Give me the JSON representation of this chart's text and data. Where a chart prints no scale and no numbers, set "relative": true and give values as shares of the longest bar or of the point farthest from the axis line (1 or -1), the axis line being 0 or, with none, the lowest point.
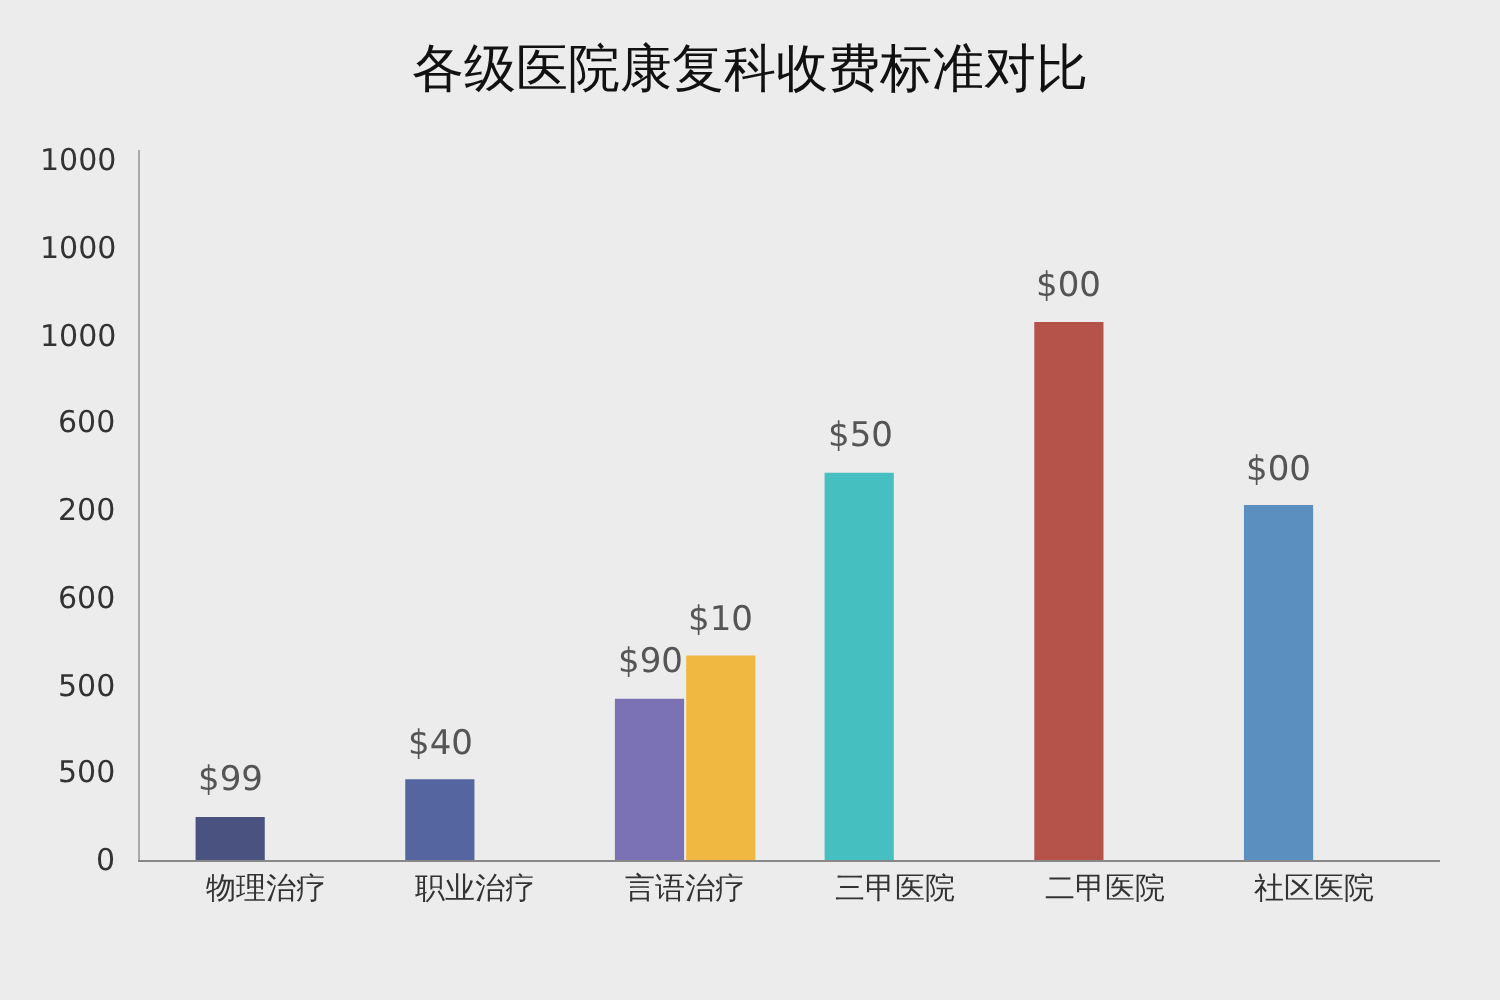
{
  "chart_data": {
    "type": "bar",
    "title": "各级医院康复科收费标准对比",
    "relative": true,
    "categories": [
      "物理治疗",
      "职业治疗",
      "言语治疗",
      "三甲医院",
      "二甲医院",
      "社区医院"
    ],
    "series": [
      {
        "colors": [
          "#4a5280",
          "#5565a0",
          "#7b72b5",
          "#45bfc0",
          "#b5524a",
          "#5b8fbf"
        ],
        "values": [
          0.08,
          0.15,
          0.3,
          0.72,
          1,
          0.66
        ]
      },
      {
        "color": "#f0b840",
        "values": [
          null,
          null,
          0.38,
          null,
          null,
          null
        ]
      }
    ],
    "annotations": [
      "0",
      "500",
      "500",
      "600",
      "200",
      "600",
      "1000",
      "1000",
      "1000",
      {
        "text": "$99",
        "x": "物理治疗",
        "y": 0.08
      },
      {
        "text": "$40",
        "x": "职业治疗",
        "y": 0.15
      },
      {
        "text": "$90",
        "x": "言语治疗",
        "y": 0.3
      },
      {
        "text": "$10",
        "x": "言语治疗",
        "y": 0.38
      },
      {
        "text": "$50",
        "x": "三甲医院",
        "y": 0.72
      },
      {
        "text": "$00",
        "x": "二甲医院",
        "y": 1
      },
      {
        "text": "$00",
        "x": "社区医院",
        "y": 0.66
      }
    ],
    "grid": false
  }
}
